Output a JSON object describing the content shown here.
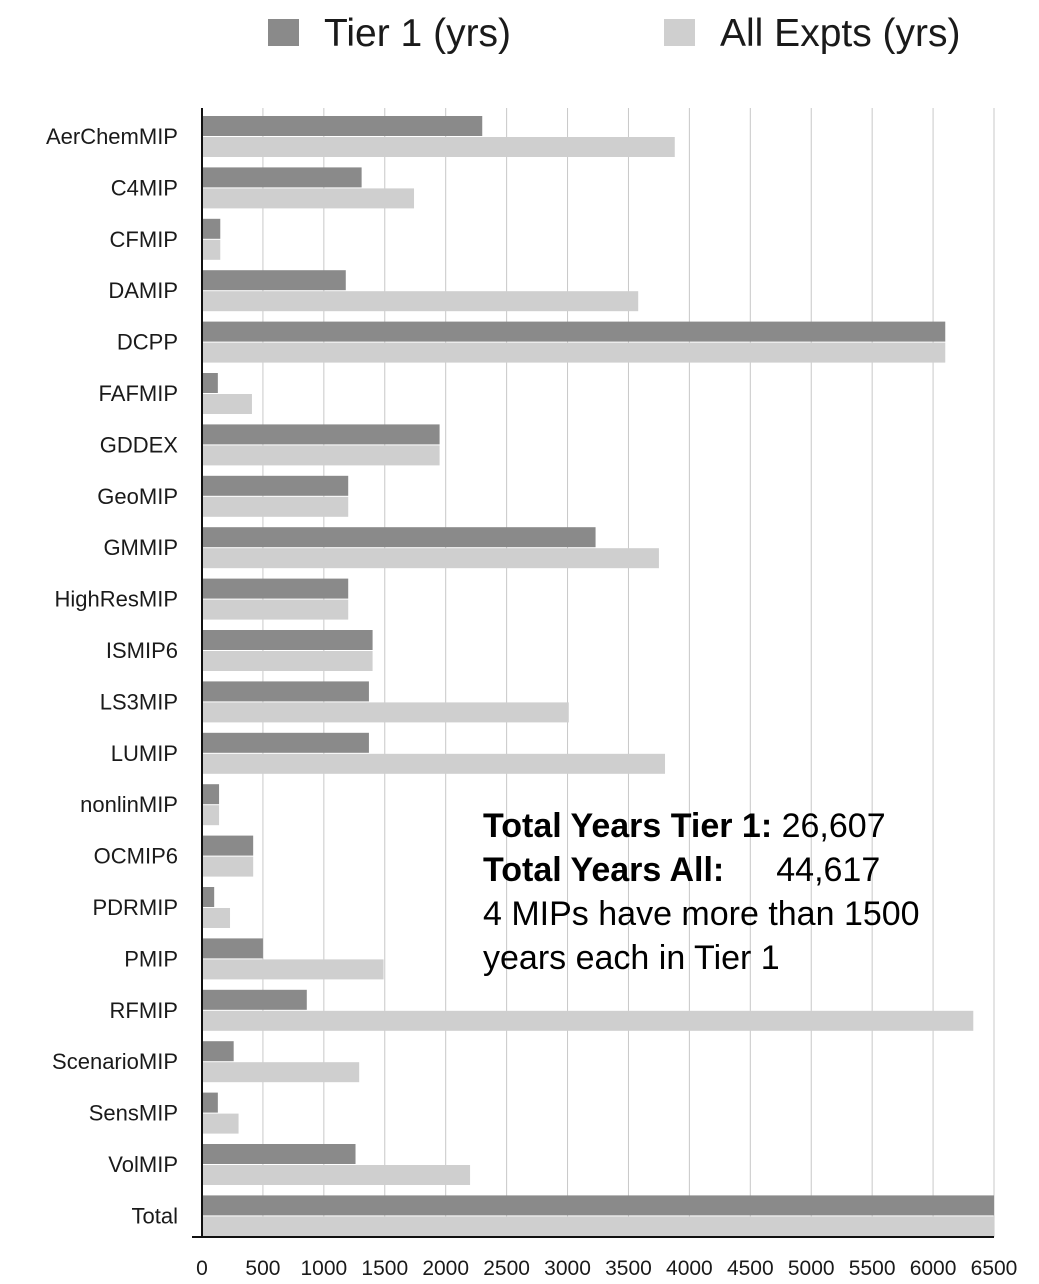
{
  "chart_data": {
    "type": "bar",
    "orientation": "horizontal",
    "categories": [
      "AerChemMIP",
      "C4MIP",
      "CFMIP",
      "DAMIP",
      "DCPP",
      "FAFMIP",
      "GDDEX",
      "GeoMIP",
      "GMMIP",
      "HighResMIP",
      "ISMIP6",
      "LS3MIP",
      "LUMIP",
      "nonlinMIP",
      "OCMIP6",
      "PDRMIP",
      "PMIP",
      "RFMIP",
      "ScenarioMIP",
      "SensMIP",
      "VolMIP",
      "Total"
    ],
    "series": [
      {
        "name": "Tier 1 (yrs)",
        "color": "#8a8a8a",
        "values": [
          2300,
          1310,
          150,
          1180,
          6100,
          130,
          1950,
          1200,
          3230,
          1200,
          1400,
          1370,
          1370,
          140,
          420,
          100,
          500,
          860,
          260,
          130,
          1260,
          6500
        ]
      },
      {
        "name": "All Expts (yrs)",
        "color": "#cfcfcf",
        "values": [
          3880,
          1740,
          150,
          3580,
          6100,
          410,
          1950,
          1200,
          3750,
          1200,
          1400,
          3010,
          3800,
          140,
          420,
          230,
          1490,
          6330,
          1290,
          300,
          2200,
          6500
        ]
      }
    ],
    "xlim": [
      0,
      6500
    ],
    "xticks": [
      "0",
      "500",
      "1000",
      "1500",
      "2000",
      "2500",
      "3000",
      "3500",
      "4000",
      "4500",
      "5000",
      "5500",
      "6000",
      "6500"
    ],
    "grid": "vertical",
    "legend": "top"
  },
  "annotation": {
    "tier1_label": "Total Years Tier 1:",
    "tier1_value": "26,607",
    "all_label": "Total Years All:",
    "all_value": "44,617",
    "note_line1": "4 MIPs have more than 1500",
    "note_line2": "years each in Tier 1"
  }
}
